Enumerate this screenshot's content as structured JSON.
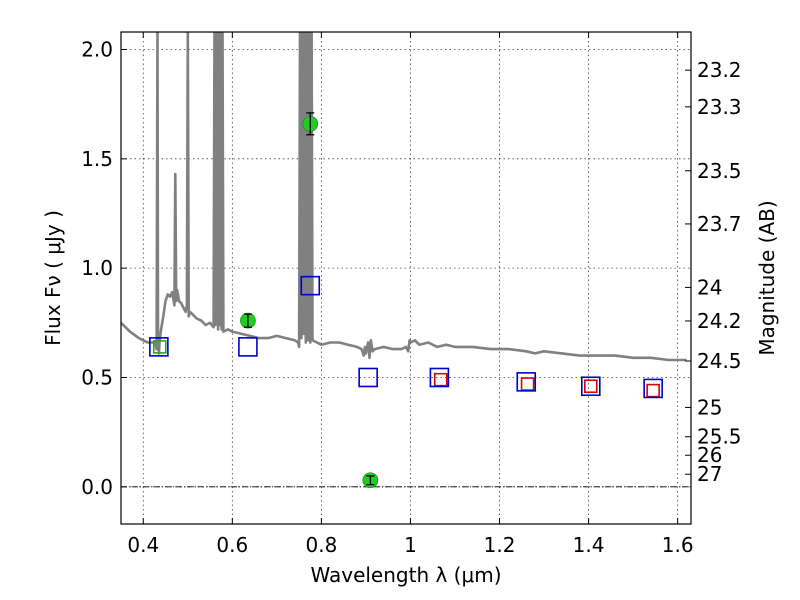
{
  "chart_data": {
    "type": "scatter",
    "xlabel": "Wavelength  λ (μm)",
    "ylabel": "Flux  Fν  ( μJy )",
    "y2label": "Magnitude (AB)",
    "xlim": [
      0.35,
      1.63
    ],
    "ylim": [
      -0.17,
      2.08
    ],
    "grid": true,
    "x_ticks": [
      0.4,
      0.6,
      0.8,
      1.0,
      1.2,
      1.4,
      1.6
    ],
    "x_tick_labels": [
      "0.4",
      "0.6",
      "0.8",
      "1",
      "1.2",
      "1.4",
      "1.6"
    ],
    "y_ticks": [
      0.0,
      0.5,
      1.0,
      1.5,
      2.0
    ],
    "y_tick_labels": [
      "0.0",
      "0.5",
      "1.0",
      "1.5",
      "2.0"
    ],
    "mag_ticks": [
      "23.2",
      "23.3",
      "23.5",
      "23.7",
      "24",
      "24.2",
      "24.5",
      "25",
      "25.5",
      "26",
      "27"
    ],
    "zero_line": 0.0,
    "colors": {
      "template": "#808080",
      "observed": "#22cc22",
      "model_blue": "#0000cc",
      "model_red": "#dd0000",
      "model_green": "#22aa22"
    },
    "series": [
      {
        "kind": "template_spectrum",
        "x": [
          0.35,
          0.37,
          0.39,
          0.41,
          0.42,
          0.427,
          0.43,
          0.432,
          0.433,
          0.435,
          0.437,
          0.44,
          0.445,
          0.45,
          0.455,
          0.46,
          0.465,
          0.47,
          0.472,
          0.474,
          0.476,
          0.478,
          0.48,
          0.485,
          0.49,
          0.495,
          0.498,
          0.5,
          0.502,
          0.505,
          0.51,
          0.52,
          0.53,
          0.54,
          0.55,
          0.558,
          0.56,
          0.562,
          0.566,
          0.568,
          0.57,
          0.572,
          0.574,
          0.576,
          0.578,
          0.58,
          0.59,
          0.6,
          0.62,
          0.64,
          0.66,
          0.68,
          0.7,
          0.72,
          0.74,
          0.748,
          0.75,
          0.752,
          0.755,
          0.758,
          0.76,
          0.762,
          0.765,
          0.768,
          0.77,
          0.772,
          0.775,
          0.778,
          0.78,
          0.79,
          0.8,
          0.82,
          0.84,
          0.86,
          0.88,
          0.89,
          0.895,
          0.898,
          0.9,
          0.905,
          0.908,
          0.911,
          0.915,
          0.92,
          0.94,
          0.96,
          0.98,
          0.99,
          0.995,
          0.998,
          1.0,
          1.01,
          1.02,
          1.04,
          1.06,
          1.08,
          1.1,
          1.14,
          1.18,
          1.22,
          1.26,
          1.28,
          1.3,
          1.34,
          1.38,
          1.42,
          1.46,
          1.5,
          1.54,
          1.58,
          1.62
        ],
        "y": [
          0.75,
          0.71,
          0.68,
          0.66,
          0.66,
          0.66,
          0.63,
          2.1,
          0.66,
          0.61,
          0.67,
          0.72,
          0.78,
          0.85,
          0.88,
          0.87,
          0.89,
          0.83,
          1.43,
          0.85,
          0.9,
          0.88,
          0.85,
          0.84,
          0.82,
          0.8,
          0.83,
          2.1,
          0.78,
          0.8,
          0.79,
          0.77,
          0.76,
          0.74,
          0.75,
          0.73,
          2.1,
          0.74,
          2.1,
          0.72,
          2.1,
          0.74,
          2.1,
          0.72,
          2.1,
          0.71,
          0.72,
          0.71,
          0.7,
          0.69,
          0.68,
          0.68,
          0.69,
          0.68,
          0.67,
          0.66,
          0.64,
          2.1,
          0.68,
          2.1,
          0.7,
          2.1,
          0.66,
          2.1,
          0.67,
          2.1,
          0.66,
          2.1,
          0.67,
          0.66,
          0.65,
          0.66,
          0.66,
          0.65,
          0.64,
          0.63,
          0.6,
          0.64,
          0.61,
          0.66,
          0.59,
          0.67,
          0.62,
          0.63,
          0.64,
          0.63,
          0.63,
          0.64,
          0.62,
          0.67,
          0.66,
          0.67,
          0.65,
          0.66,
          0.64,
          0.65,
          0.64,
          0.64,
          0.63,
          0.63,
          0.62,
          0.61,
          0.62,
          0.61,
          0.6,
          0.6,
          0.6,
          0.59,
          0.59,
          0.58,
          0.58
        ]
      },
      {
        "kind": "observed_fluxes",
        "x": [
          0.635,
          0.775,
          0.91
        ],
        "y": [
          0.76,
          1.66,
          0.03
        ],
        "yerr": [
          0.03,
          0.05,
          0.02
        ]
      },
      {
        "kind": "model_fluxes_blue",
        "x": [
          0.435,
          0.635,
          0.775,
          0.905,
          1.065,
          1.26,
          1.405,
          1.545
        ],
        "y": [
          0.64,
          0.64,
          0.92,
          0.5,
          0.5,
          0.48,
          0.46,
          0.45
        ]
      },
      {
        "kind": "model_fluxes_red",
        "x": [
          1.068,
          1.263,
          1.405,
          1.545
        ],
        "y": [
          0.49,
          0.47,
          0.46,
          0.44
        ]
      },
      {
        "kind": "model_fluxes_green",
        "x": [
          0.437
        ],
        "y": [
          0.64
        ]
      }
    ]
  }
}
